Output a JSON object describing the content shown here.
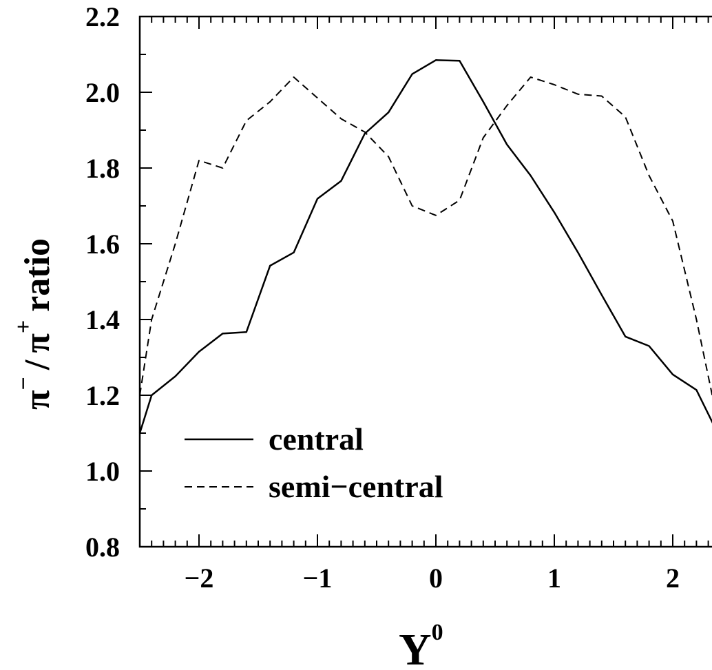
{
  "chart_data": {
    "type": "line",
    "xlabel": "Y",
    "xlabel_sup": "0",
    "ylabel_parts": {
      "pi1": "π",
      "minus": "−",
      "slash": "/",
      "pi2": "π",
      "plus": "+",
      "ratio": "ratio"
    },
    "xlim": [
      -2.5,
      2.5
    ],
    "ylim": [
      0.8,
      2.2
    ],
    "xticks": [
      -2,
      -1,
      0,
      1,
      2
    ],
    "xtick_labels": [
      "−2",
      "−1",
      "0",
      "1",
      "2"
    ],
    "yticks": [
      0.8,
      1.0,
      1.2,
      1.4,
      1.6,
      1.8,
      2.0,
      2.2
    ],
    "ytick_labels": [
      "0.8",
      "1.0",
      "1.2",
      "1.4",
      "1.6",
      "1.8",
      "2.0",
      "2.2"
    ],
    "grid": false,
    "legend_position": "bottom-left",
    "series": [
      {
        "name": "central",
        "style": "solid",
        "color": "#000000",
        "x": [
          -2.5,
          -2.4,
          -2.2,
          -2.0,
          -1.8,
          -1.6,
          -1.4,
          -1.2,
          -1.0,
          -0.8,
          -0.6,
          -0.4,
          -0.2,
          0.0,
          0.2,
          0.4,
          0.6,
          0.8,
          1.0,
          1.2,
          1.4,
          1.6,
          1.8,
          2.0,
          2.2,
          2.4,
          2.5
        ],
        "y": [
          1.1,
          1.2,
          1.25,
          1.315,
          1.363,
          1.367,
          1.542,
          1.577,
          1.719,
          1.766,
          1.891,
          1.947,
          2.048,
          2.085,
          2.083,
          1.975,
          1.862,
          1.78,
          1.683,
          1.577,
          1.465,
          1.355,
          1.33,
          1.255,
          1.214,
          1.087,
          1.08
        ]
      },
      {
        "name": "semi-central",
        "style": "dashed",
        "color": "#000000",
        "x": [
          -2.5,
          -2.4,
          -2.2,
          -2.0,
          -1.8,
          -1.6,
          -1.4,
          -1.2,
          -1.0,
          -0.8,
          -0.6,
          -0.4,
          -0.2,
          0.0,
          0.2,
          0.4,
          0.6,
          0.8,
          1.0,
          1.2,
          1.4,
          1.6,
          1.8,
          2.0,
          2.2,
          2.4,
          2.5
        ],
        "y": [
          1.2,
          1.4,
          1.6,
          1.82,
          1.8,
          1.925,
          1.975,
          2.04,
          1.985,
          1.93,
          1.895,
          1.83,
          1.7,
          1.675,
          1.715,
          1.88,
          1.965,
          2.04,
          2.02,
          1.995,
          1.99,
          1.935,
          1.78,
          1.66,
          1.4,
          1.1,
          1.05
        ]
      }
    ]
  },
  "legend": {
    "central": "central",
    "semi_central": "semi−central"
  }
}
